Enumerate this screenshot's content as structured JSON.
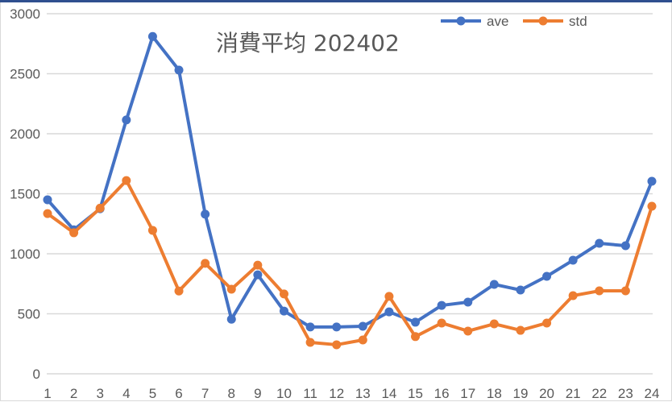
{
  "chart_data": {
    "type": "line",
    "title": "消費平均 202402",
    "xlabel": "",
    "ylabel": "",
    "categories": [
      "1",
      "2",
      "3",
      "4",
      "5",
      "6",
      "7",
      "8",
      "9",
      "10",
      "11",
      "12",
      "13",
      "14",
      "15",
      "16",
      "17",
      "18",
      "19",
      "20",
      "21",
      "22",
      "23",
      "24"
    ],
    "series": [
      {
        "name": "ave",
        "color": "#4472c4",
        "values": [
          1450,
          1200,
          1375,
          2115,
          2810,
          2530,
          1330,
          455,
          825,
          523,
          390,
          390,
          396,
          516,
          430,
          570,
          597,
          745,
          698,
          812,
          946,
          1087,
          1067,
          1604
        ]
      },
      {
        "name": "std",
        "color": "#ed7d31",
        "values": [
          1335,
          1175,
          1380,
          1610,
          1195,
          690,
          920,
          705,
          905,
          665,
          262,
          242,
          282,
          645,
          310,
          423,
          356,
          416,
          362,
          423,
          651,
          691,
          691,
          1396
        ]
      }
    ],
    "ylim": [
      0,
      3000
    ],
    "yticks": [
      "0",
      "500",
      "1000",
      "1500",
      "2000",
      "2500",
      "3000"
    ],
    "grid": true,
    "legend_position": "top-right"
  },
  "legend": {
    "ave": "ave",
    "std": "std"
  },
  "title": "消費平均 202402"
}
